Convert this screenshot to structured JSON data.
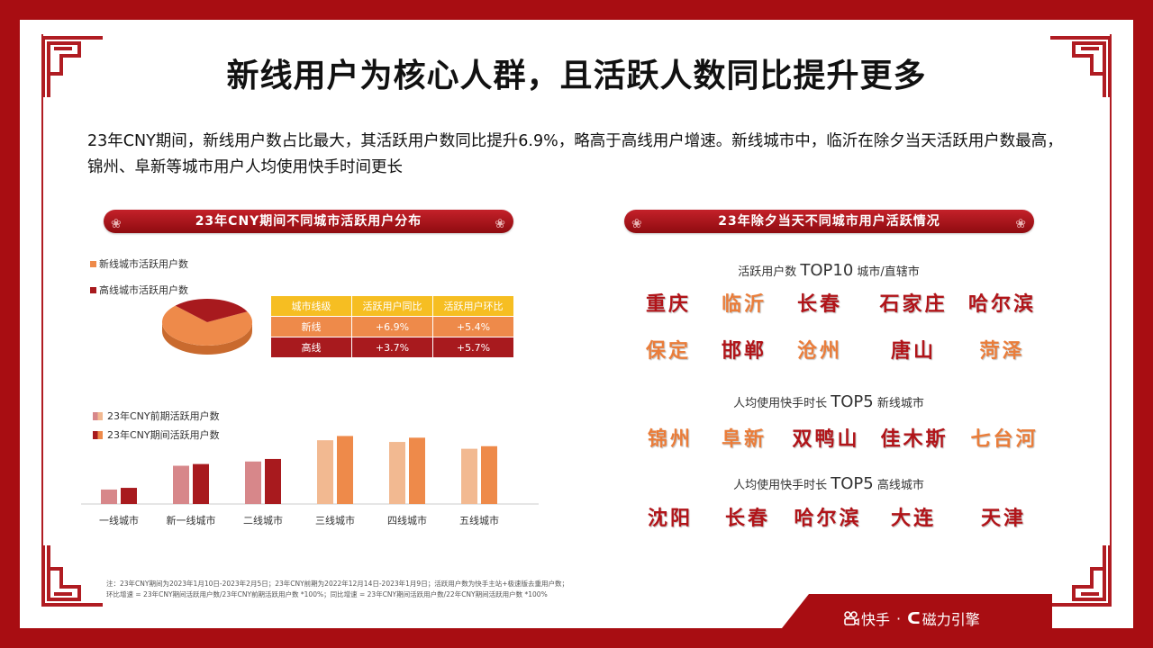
{
  "title": "新线用户为核心人群，且活跃人数同比提升更多",
  "summary": "23年CNY期间，新线用户数占比最大，其活跃用户数同比提升6.9%，略高于高线用户增速。新线城市中，临沂在除夕当天活跃用户数最高，锦州、阜新等城市用户人均使用快手时间更长",
  "left_banner": "23年CNY期间不同城市活跃用户分布",
  "right_banner": "23年除夕当天不同城市用户活跃情况",
  "colors": {
    "frame": "#a80d12",
    "dark_red": "#a81a1e",
    "orange": "#ee8a4a",
    "light_orange": "#f2b991",
    "pink": "#d7878a",
    "yellow": "#f6be22"
  },
  "pie_legend": [
    "新线城市活跃用户数",
    "高线城市活跃用户数"
  ],
  "rate_table": {
    "headers": [
      "城市线级",
      "活跃用户同比",
      "活跃用户环比"
    ],
    "rows": [
      [
        "新线",
        "+6.9%",
        "+5.4%"
      ],
      [
        "高线",
        "+3.7%",
        "+5.7%"
      ]
    ]
  },
  "bar_legend": [
    "23年CNY前期活跃用户数",
    "23年CNY期间活跃用户数"
  ],
  "chart_data": [
    {
      "type": "pie",
      "labels": [
        "新线城市活跃用户数",
        "高线城市活跃用户数"
      ],
      "values": [
        70,
        30
      ]
    },
    {
      "type": "bar",
      "categories": [
        "一线城市",
        "新一线城市",
        "二线城市",
        "三线城市",
        "四线城市",
        "五线城市"
      ],
      "series": [
        {
          "name": "23年CNY前期活跃用户数",
          "values": [
            17,
            45,
            50,
            75,
            73,
            65
          ]
        },
        {
          "name": "23年CNY期间活跃用户数",
          "values": [
            19,
            47,
            53,
            80,
            78,
            68
          ]
        }
      ],
      "ylim": [
        0,
        90
      ]
    }
  ],
  "top10": {
    "label_prefix": "活跃用户数",
    "label_big": "TOP10",
    "label_suffix": "城市/直辖市",
    "row1": [
      "重庆",
      "临沂",
      "长春",
      "石家庄",
      "哈尔滨"
    ],
    "row2": [
      "保定",
      "邯郸",
      "沧州",
      "唐山",
      "菏泽"
    ]
  },
  "top5_new": {
    "label_prefix": "人均使用快手时长",
    "label_big": "TOP5",
    "label_suffix": "新线城市",
    "cities": [
      "锦州",
      "阜新",
      "双鸭山",
      "佳木斯",
      "七台河"
    ]
  },
  "top5_high": {
    "label_prefix": "人均使用快手时长",
    "label_big": "TOP5",
    "label_suffix": "高线城市",
    "cities": [
      "沈阳",
      "长春",
      "哈尔滨",
      "大连",
      "天津"
    ]
  },
  "note_line1": "注：23年CNY期间为2023年1月10日-2023年2月5日；23年CNY前期为2022年12月14日-2023年1月9日；活跃用户数为快手主站+极速版去重用户数；",
  "note_line2": "环比增速 = 23年CNY期间活跃用户数/23年CNY前期活跃用户数 *100%；同比增速 = 23年CNY期间活跃用户数/22年CNY期间活跃用户数 *100%",
  "footer": {
    "brand1": "快手",
    "sep": "·",
    "brand2": "磁力引擎"
  }
}
